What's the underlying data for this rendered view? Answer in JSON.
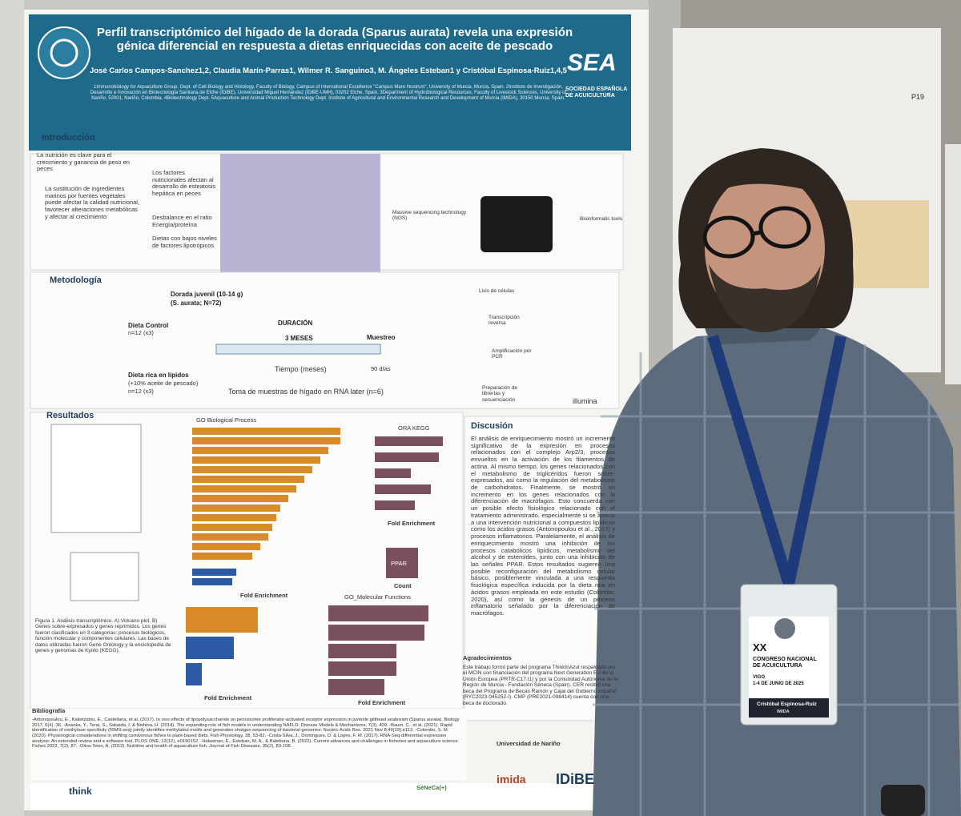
{
  "poster": {
    "title": "Perfil transcriptómico del hígado de la dorada (Sparus aurata) revela una expresión génica diferencial en respuesta a dietas enriquecidas con aceite de pescado",
    "authors": "José Carlos Campos-Sanchez1,2, Claudia Marín-Parras1, Wilmer R. Sanguino3, M. Ángeles Esteban1 y Cristóbal Espinosa-Ruiz1,4,5",
    "affiliations": "1Immunobiology for Aquaculture Group, Dept. of Cell Biology and Histology, Faculty of Biology, Campus of International Excellence \"Campus Mare Nostrum\", University of Murcia, Murcia, Spain. 2Instituto de Investigación, Desarrollo e Innovación en Biotecnología Sanitaria de Elche (IDiBE), Universidad Miguel Hernández (IDiBE-UMH), 03202 Elche, Spain. 3Department of Hydrobiological Resources, Faculty of Livestock Sciences, University of Nariño, 52001, Nariño, Colombia. 4Biotechnology Dept. 5Aquaculture and Animal Production Technology Dept. Institute of Agricultural and Environmental Research and Development of Murcia (IMIDA), 30150 Murcia, Spain.",
    "society": "SEA",
    "society_name": "SOCIEDAD ESPAÑOLA DE ACUICULTURA",
    "intro": {
      "heading": "Introducción",
      "text_1": "La nutrición es clave para el crecimiento y ganancia de peso en peces",
      "text_2": "La sustitución de ingredientes marinos por fuentes vegetales puede afectar la calidad nutricional, favorecer alteraciones metabólicas y afectar al crecimiento",
      "text_3": "Los factores nutricionales afectan al desarrollo de esteatosis hepática en peces",
      "text_4": "Desbalance en el ratio Energía/proteína",
      "text_5": "Dietas con bajos niveles de factores lipotrópicos",
      "ngs": "Massive sequencing technology (NGS)",
      "bioinformatic": "Bioinformatic tools"
    },
    "methods": {
      "heading": "Metodología",
      "fish": "Dorada juvenil (10-14 g)",
      "fish_n": "(S. aurata; N=72)",
      "diet_control": "Dieta Control",
      "n_control": "n=12 (x3)",
      "diet_lipid": "Dieta rica en lípidos",
      "diet_lipid_detail": "(+10% aceite de pescado)",
      "n_lipid": "n=12 (x3)",
      "duration": "DURACIÓN",
      "months": "3 MESES",
      "time_axis": "Tiempo (meses)",
      "sampling": "Muestreo",
      "days": "90 días",
      "liver_sampling": "Toma de muestras de hígado en RNA later (n=6)",
      "lysis": "Lisis de células",
      "rt": "Transcripción reversa",
      "pcr": "Amplificación por PCR",
      "libraries": "Preparación de librerías y secuenciación",
      "illumina": "illumina"
    },
    "results": {
      "heading": "Resultados",
      "go_bp": "GO Biological Process",
      "fold_enrichment_1": "Fold Enrichment",
      "ora_kegg": "ORA KEGG",
      "fold_enrichment_2": "Fold Enrichment",
      "ppar": "PPAR",
      "count": "Count",
      "go_mf": "GO_Molecular Functions",
      "fold_enrichment_3": "Fold Enrichment",
      "fold_enrichment_4": "Fold Enrichment",
      "caption": "Figura 1. Análisis transcriptómico. A) Volcano plot. B) Genes sobre-expresados y genes reprimidos. Los genes fueron clasificados en 3 categorías: procesos biológicos, función molecular y componentes celulares. Las bases de datos utilizadas fueron Gene Ontology y la enciclopedia de genes y genomas de Kyoto (KEGG)."
    },
    "discussion": {
      "heading": "Discusión",
      "text": "El análisis de enriquecimiento mostró un incremento significativo de la expresión en procesos relacionados con el complejo Arp2/3, procesos envueltos en la activación de los filamentos de actina. Al mismo tiempo, los genes relacionados con el metabolismo de triglicéridos fueron sobre-expresados, así como la regulación del metabolismo de carbohidratos. Finalmente, se mostró un incremento en los genes relacionados con la diferenciación de macrófagos. Esto concuerda con un posible efecto fisiológico relacionado con el tratamiento administrado, especialmente si se asocia a una intervención nutricional a compuestos lipídicos como los ácidos grasos (Antonopoulou et al., 2017) y procesos inflamatorios. Paralelamente, el análisis de enriquecimiento mostró una inhibición de los procesos catabólicos lipídicos, metabolismo del alcohol y de esteroides, junto con una inhibición de las señales PPAR. Estos resultados sugieren una posible reconfiguración del metabolismo celular básico, posiblemente vinculada a una respuesta fisiológica específica inducida por la dieta rica en ácidos grasos empleada en este estudio (Colombo, 2020), así como la génesis de un proceso inflamatorio señalado por la diferenciación de macrófagos."
    },
    "acknowledgements": {
      "heading": "Agradecimientos",
      "text": "Este trabajo formó parte del programa ThinkInAzul respaldado por el MCIN con financiación del programa Next Generation EU de la Unión Europea (PRTR-C17.I1) y por la Comunidad Autónoma de la Región de Murcia - Fundación Séneca (Spain). CER recibió una beca del Programa de Becas Ramón y Cajal del Gobierno español (RYC2023-045252-I). CMP (PRE2021-098414) cuenta con una beca de doctorado."
    },
    "bibliography": {
      "heading": "Bibliografía",
      "text": "-Antonopoulou, E., Kaitetzidou, E., Castellana, et al. (2017). In vivo effects of lipopolysaccharide on peroxisome proliferator-activated receptor expression in juvenile gilthead seabream (Sparus aurata). Biology 2017, 6(4), 36. -Asaoka, Y., Terai, S., Sakaida, I. & Nishina, H. (2014). The expanding role of fish models in understanding NAFLD. Disease Models & Mechanisms, 7(3), 409. -Baum, C., et al. (2021). Rapid identification of methylase specificity (RIMS-seq) jointly identifies methylated motifs and generates shotgun sequencing of bacterial genomes. Nucleic Acids Res. 2021 Nov 8;49(19):e113. -Colombo, S. M. (2020). Physiological considerations in shifting carnivorous fishes to plant-based diets. Fish Physiology, 38, 53-82. -Costa-Silva, J., Domingues, D. & Lopes, F. M. (2017). RNA-Seq differential expression analysis: An extended review and a software tool. PLOS ONE, 12(12), e0190152. -Halasman, E., Esteban, M. A., & Balebona, B. (2022). Current advances and challenges in fisheries and aquaculture science. Fishes 2022, 7(2), 87. -Oliva-Teles, A. (2012). Nutrition and health of aquaculture fish. Journal of Fish Diseases, 35(2), 83-108."
    },
    "logos": {
      "narino": "Universidad de Nariño",
      "seneca": "SéNeCa(+)",
      "imida": "imida",
      "idibe": "IDiBE",
      "think": "think"
    }
  },
  "board": {
    "number": "P19"
  },
  "badge": {
    "edition": "XX",
    "congress": "CONGRESO NACIONAL DE ACUICULTURA",
    "city": "VIGO",
    "dates": "1-4 DE JUNIO DE 2025",
    "name": "Cristóbal Espinosa-Ruiz",
    "affiliation": "IMIDA"
  }
}
